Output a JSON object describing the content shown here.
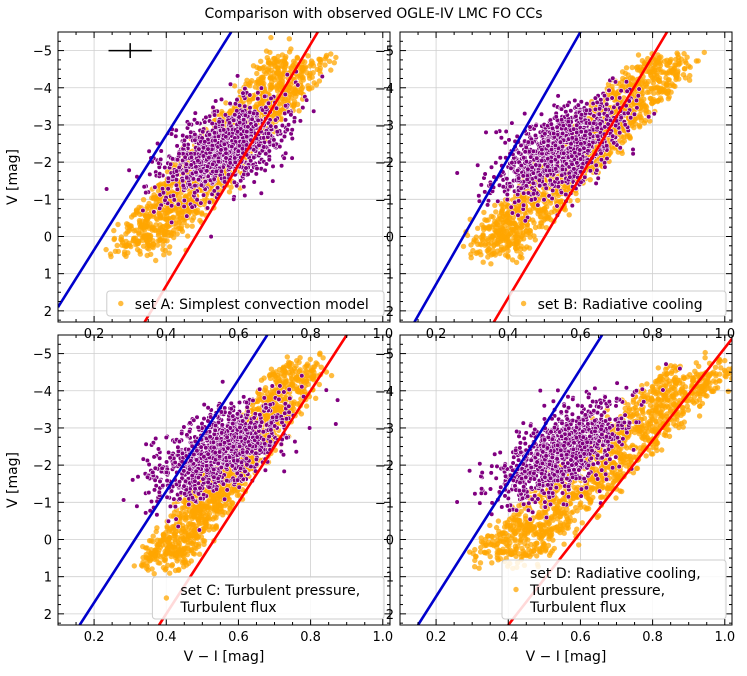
{
  "title": "Comparison with observed OGLE-IV LMC FO CCs",
  "xlabel": "V − I [mag]",
  "ylabel": "V [mag]",
  "colors": {
    "model": "#FFA500",
    "observed": "#800080",
    "blue_edge": "#0000CC",
    "red_edge": "#FF0000",
    "grid": "#cfcfcf"
  },
  "chart_data": [
    {
      "type": "scatter",
      "panel": "A",
      "legend": "set A: Simplest convection model",
      "legend_lines": [
        "set A: Simplest convection model"
      ],
      "legend_placement": "lower-right",
      "xlim": [
        0.1,
        1.02
      ],
      "ylim": [
        2.3,
        -5.5
      ],
      "xticks": [
        "0.2",
        "0.4",
        "0.6",
        "0.8",
        "1.0"
      ],
      "yticks": [
        "-5",
        "-4",
        "-3",
        "-2",
        "-1",
        "0",
        "1",
        "2"
      ],
      "blue_edge": {
        "x": [
          0.1,
          0.58
        ],
        "y": [
          1.9,
          -5.5
        ]
      },
      "red_edge": {
        "x": [
          0.34,
          0.82
        ],
        "y": [
          2.3,
          -5.5
        ]
      },
      "model_region": {
        "x_low": 0.26,
        "x_high": 0.72,
        "y_top": -4.8,
        "y_bottom": 0.4,
        "width_left": 0.17
      },
      "observed_region": {
        "cx": 0.56,
        "cy": -2.35,
        "sx": 0.07,
        "sy": 0.65,
        "tilt": -0.08
      },
      "error_bar": {
        "x": 0.3,
        "y": -5.0,
        "dx": 0.06,
        "dy": 0.2
      },
      "grid": true
    },
    {
      "type": "scatter",
      "panel": "B",
      "legend": "set B: Radiative cooling",
      "legend_lines": [
        "set B: Radiative cooling"
      ],
      "legend_placement": "lower-right",
      "xlim": [
        0.1,
        1.02
      ],
      "ylim": [
        2.3,
        -5.5
      ],
      "xticks": [
        "0.2",
        "0.4",
        "0.6",
        "0.8",
        "1.0"
      ],
      "yticks": [
        "-5",
        "-4",
        "-3",
        "-2",
        "-1",
        "0",
        "1",
        "2"
      ],
      "blue_edge": {
        "x": [
          0.14,
          0.6
        ],
        "y": [
          2.3,
          -5.5
        ]
      },
      "red_edge": {
        "x": [
          0.36,
          0.84
        ],
        "y": [
          2.3,
          -5.5
        ]
      },
      "model_region": {
        "x_low": 0.3,
        "x_high": 0.8,
        "y_top": -4.8,
        "y_bottom": 0.4,
        "width_left": 0.16
      },
      "observed_region": {
        "cx": 0.55,
        "cy": -2.35,
        "sx": 0.07,
        "sy": 0.65,
        "tilt": -0.08
      },
      "grid": true
    },
    {
      "type": "scatter",
      "panel": "C",
      "legend": "set C: Turbulent pressure, Turbulent flux",
      "legend_lines": [
        "set C: Turbulent pressure,",
        "Turbulent flux"
      ],
      "legend_placement": "lower-right",
      "xlim": [
        0.1,
        1.02
      ],
      "ylim": [
        2.3,
        -5.5
      ],
      "xticks": [
        "0.2",
        "0.4",
        "0.6",
        "0.8",
        "1.0"
      ],
      "yticks": [
        "-5",
        "-4",
        "-3",
        "-2",
        "-1",
        "0",
        "1",
        "2"
      ],
      "blue_edge": {
        "x": [
          0.16,
          0.68
        ],
        "y": [
          2.3,
          -5.5
        ]
      },
      "red_edge": {
        "x": [
          0.38,
          0.9
        ],
        "y": [
          2.3,
          -5.5
        ]
      },
      "model_region": {
        "x_low": 0.36,
        "x_high": 0.75,
        "y_top": -4.7,
        "y_bottom": 0.6,
        "width_left": 0.13
      },
      "observed_region": {
        "cx": 0.54,
        "cy": -2.35,
        "sx": 0.07,
        "sy": 0.65,
        "tilt": -0.08
      },
      "grid": true
    },
    {
      "type": "scatter",
      "panel": "D",
      "legend": "set D: Radiative cooling, Turbulent pressure, Turbulent flux",
      "legend_lines": [
        "set D: Radiative cooling,",
        "Turbulent pressure,",
        "Turbulent flux"
      ],
      "legend_placement": "lower-right",
      "xlim": [
        0.1,
        1.02
      ],
      "ylim": [
        2.3,
        -5.5
      ],
      "xticks": [
        "0.2",
        "0.4",
        "0.6",
        "0.8",
        "1.0"
      ],
      "yticks": [
        "-5",
        "-4",
        "-3",
        "-2",
        "-1",
        "0",
        "1",
        "2"
      ],
      "blue_edge": {
        "x": [
          0.15,
          0.66
        ],
        "y": [
          2.3,
          -5.5
        ]
      },
      "red_edge": {
        "x": [
          0.4,
          1.02
        ],
        "y": [
          2.3,
          -5.4
        ]
      },
      "model_region": {
        "x_low": 0.32,
        "x_high": 0.86,
        "y_top": -4.6,
        "y_bottom": 0.5,
        "width_left": 0.2
      },
      "observed_region": {
        "cx": 0.55,
        "cy": -2.35,
        "sx": 0.07,
        "sy": 0.65,
        "tilt": -0.08
      },
      "grid": true
    }
  ]
}
